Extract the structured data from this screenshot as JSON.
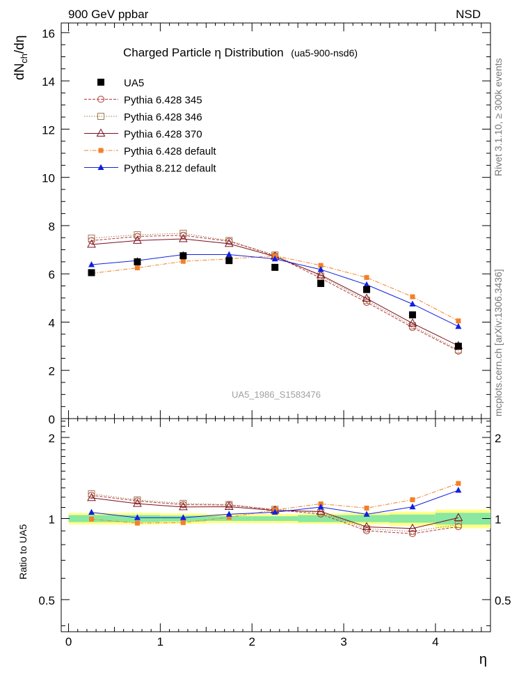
{
  "header": {
    "left": "900 GeV ppbar",
    "right": "NSD"
  },
  "side_labels": {
    "rivet": "Rivet 3.1.10, ≥ 300k events",
    "mcplots": "mcplots.cern.ch [arXiv:1306.3436]"
  },
  "chart_data": {
    "type": "line",
    "title": "Charged Particle  η Distribution",
    "title_tag": "(ua5-900-nsd6)",
    "watermark": "UA5_1986_S1583476",
    "xlabel": "η",
    "ylabel": "dN_ch/dη",
    "ylabel_main": "dN",
    "ylabel_sub": "ch",
    "ylabel_tail": "/dη",
    "ratio_ylabel": "Ratio to UA5",
    "xlim": [
      -0.08,
      4.6
    ],
    "ylim": [
      0,
      16.4
    ],
    "ratio_ylim": [
      0.38,
      2.35
    ],
    "x_ticks": [
      "0",
      "1",
      "2",
      "3",
      "4"
    ],
    "y_ticks": [
      "0",
      "2",
      "4",
      "6",
      "8",
      "10",
      "12",
      "14",
      "16"
    ],
    "ratio_ticks": [
      "0.5",
      "1",
      "2"
    ],
    "x": [
      0.25,
      0.75,
      1.25,
      1.75,
      2.25,
      2.75,
      3.25,
      3.75,
      4.25
    ],
    "reference": {
      "name": "UA5",
      "values": [
        6.05,
        6.5,
        6.75,
        6.55,
        6.27,
        5.6,
        5.35,
        4.3,
        3.0
      ]
    },
    "band": {
      "yellow": [
        0.05,
        0.05,
        0.045,
        0.04,
        0.04,
        0.045,
        0.05,
        0.06,
        0.08
      ],
      "green": [
        0.03,
        0.03,
        0.025,
        0.02,
        0.02,
        0.03,
        0.03,
        0.035,
        0.05
      ]
    },
    "series": [
      {
        "name": "Pythia 6.428 345",
        "color": "#b5363a",
        "marker": "circle-open",
        "dash": "4,2",
        "values": [
          7.38,
          7.55,
          7.6,
          7.35,
          6.75,
          5.82,
          4.82,
          3.78,
          2.8
        ]
      },
      {
        "name": "Pythia 6.428 346",
        "color": "#a0784a",
        "marker": "square-open",
        "dash": "1.5,2",
        "values": [
          7.48,
          7.62,
          7.68,
          7.38,
          6.78,
          5.9,
          4.9,
          3.85,
          2.85
        ]
      },
      {
        "name": "Pythia 6.428 370",
        "color": "#7a0e1e",
        "marker": "triangle-open",
        "dash": "",
        "values": [
          7.22,
          7.38,
          7.45,
          7.25,
          6.72,
          5.95,
          4.98,
          3.95,
          3.02
        ]
      },
      {
        "name": "Pythia 6.428 default",
        "color": "#f28028",
        "marker": "square-filled",
        "dash": "6,2,1.5,2",
        "values": [
          6.02,
          6.25,
          6.52,
          6.62,
          6.75,
          6.35,
          5.85,
          5.05,
          4.05
        ]
      },
      {
        "name": "Pythia 8.212 default",
        "color": "#1020e0",
        "marker": "triangle-filled",
        "dash": "",
        "values": [
          6.38,
          6.55,
          6.8,
          6.8,
          6.62,
          6.18,
          5.55,
          4.75,
          3.82
        ]
      }
    ]
  }
}
